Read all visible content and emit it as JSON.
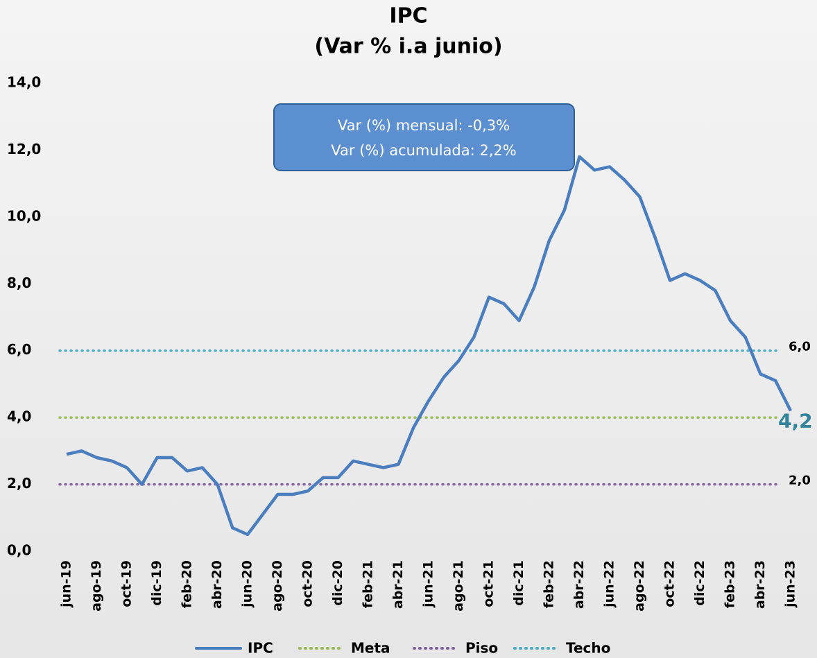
{
  "chart_data": {
    "type": "line",
    "title": "IPC",
    "subtitle": "(Var % i.a junio)",
    "categories": [
      "jun-19",
      null,
      "ago-19",
      null,
      "oct-19",
      null,
      "dic-19",
      null,
      "feb-20",
      null,
      "abr-20",
      null,
      "jun-20",
      null,
      "ago-20",
      null,
      "oct-20",
      null,
      "dic-20",
      null,
      "feb-21",
      null,
      "abr-21",
      null,
      "jun-21",
      null,
      "ago-21",
      null,
      "oct-21",
      null,
      "dic-21",
      null,
      "feb-22",
      null,
      "abr-22",
      null,
      "jun-22",
      null,
      "ago-22",
      null,
      "oct-22",
      null,
      "dic-22",
      null,
      "feb-23",
      null,
      "abr-23",
      null,
      "jun-23"
    ],
    "series": [
      {
        "name": "IPC",
        "color": "#4a7ebf",
        "values": [
          2.9,
          3.0,
          2.8,
          2.7,
          2.5,
          2.0,
          2.8,
          2.8,
          2.4,
          2.5,
          2.0,
          0.7,
          0.5,
          1.1,
          1.7,
          1.7,
          1.8,
          2.2,
          2.2,
          2.7,
          2.6,
          2.5,
          2.6,
          3.7,
          4.5,
          5.2,
          5.7,
          6.4,
          7.6,
          7.4,
          6.9,
          7.9,
          9.3,
          10.2,
          11.8,
          11.4,
          11.5,
          11.1,
          10.6,
          9.4,
          8.1,
          8.3,
          8.1,
          7.8,
          6.9,
          6.4,
          5.3,
          5.1,
          4.2
        ],
        "value_labels": [
          null,
          null,
          null,
          null,
          null,
          null,
          null,
          null,
          null,
          null,
          null,
          null,
          null,
          null,
          null,
          null,
          null,
          null,
          null,
          null,
          null,
          null,
          null,
          null,
          null,
          null,
          null,
          null,
          null,
          null,
          null,
          null,
          null,
          null,
          null,
          null,
          null,
          null,
          null,
          null,
          null,
          null,
          null,
          null,
          null,
          null,
          null,
          null,
          "4,2"
        ]
      }
    ],
    "reference_lines": [
      {
        "name": "Meta",
        "color": "#9bbb59",
        "value": 4
      },
      {
        "name": "Piso",
        "color": "#8064a2",
        "value": 2,
        "label": "2,0"
      },
      {
        "name": "Techo",
        "color": "#4bacc6",
        "value": 6,
        "label": "6,0"
      }
    ],
    "ylim": [
      0,
      14
    ],
    "yticks": [
      {
        "value": 0,
        "label": "0,0"
      },
      {
        "value": 2,
        "label": "2,0"
      },
      {
        "value": 4,
        "label": "4,0"
      },
      {
        "value": 6,
        "label": "6,0"
      },
      {
        "value": 8,
        "label": "8,0"
      },
      {
        "value": 10,
        "label": "10,0"
      },
      {
        "value": 12,
        "label": "12,0"
      },
      {
        "value": 14,
        "label": "14,0"
      }
    ],
    "annotation": [
      "Var (%) mensual: -0,3%",
      "Var (%) acumulada: 2,2%"
    ]
  }
}
